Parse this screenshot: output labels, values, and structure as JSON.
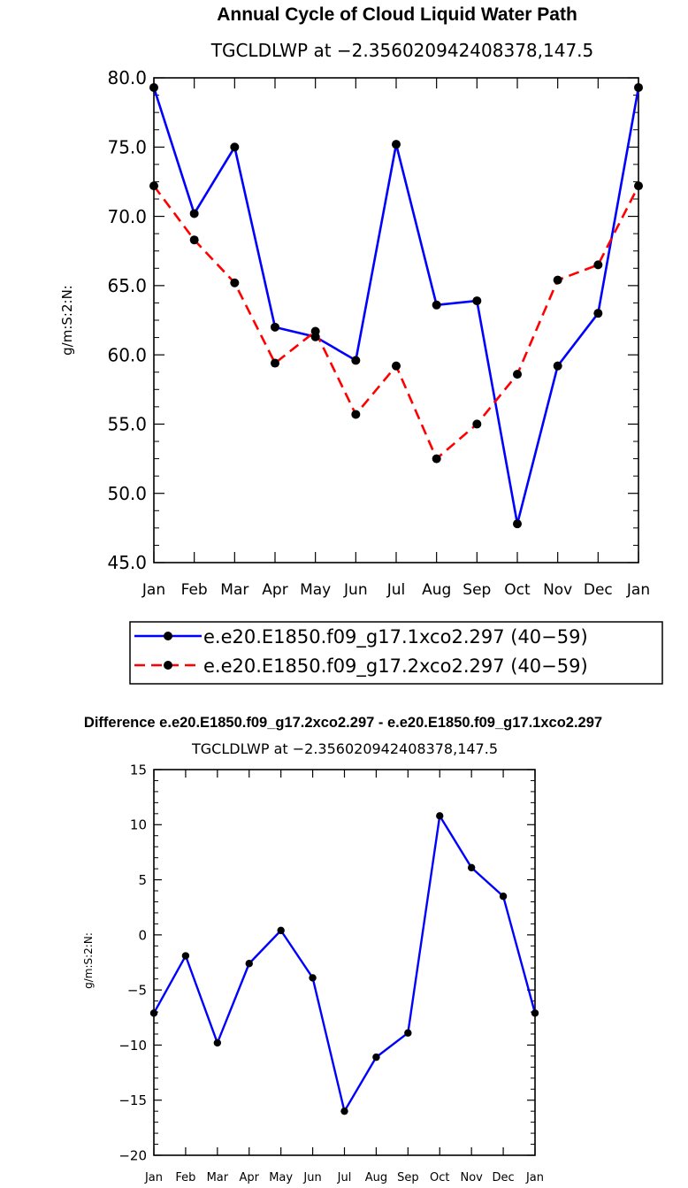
{
  "chart_data": [
    {
      "type": "line",
      "title": "Annual Cycle of Cloud Liquid Water Path",
      "subtitle": "TGCLDLWP at −2.356020942408378,147.5",
      "xlabel": "",
      "ylabel": "g/m:S:2:N:",
      "categories": [
        "Jan",
        "Feb",
        "Mar",
        "Apr",
        "May",
        "Jun",
        "Jul",
        "Aug",
        "Sep",
        "Oct",
        "Nov",
        "Dec",
        "Jan"
      ],
      "ylim": [
        45,
        80
      ],
      "yticks": [
        45,
        50,
        55,
        60,
        65,
        70,
        75,
        80
      ],
      "ytick_labels": [
        "45.0",
        "50.0",
        "55.0",
        "60.0",
        "65.0",
        "70.0",
        "75.0",
        "80.0"
      ],
      "series": [
        {
          "name": "e.e20.E1850.f09_g17.1xco2.297 (40−59)",
          "color": "#0000ff",
          "dash": "solid",
          "values": [
            79.3,
            70.2,
            75.0,
            62.0,
            61.3,
            59.6,
            75.2,
            63.6,
            63.9,
            47.8,
            59.2,
            63.0,
            79.3
          ]
        },
        {
          "name": "e.e20.E1850.f09_g17.2xco2.297 (40−59)",
          "color": "#ff0000",
          "dash": "dashed",
          "values": [
            72.2,
            68.3,
            65.2,
            59.4,
            61.7,
            55.7,
            59.2,
            52.5,
            55.0,
            58.6,
            65.4,
            66.5,
            72.2
          ]
        }
      ]
    },
    {
      "type": "line",
      "title": "Difference e.e20.E1850.f09_g17.2xco2.297 - e.e20.E1850.f09_g17.1xco2.297",
      "subtitle": "TGCLDLWP at −2.356020942408378,147.5",
      "xlabel": "",
      "ylabel": "g/m:S:2:N:",
      "categories": [
        "Jan",
        "Feb",
        "Mar",
        "Apr",
        "May",
        "Jun",
        "Jul",
        "Aug",
        "Sep",
        "Oct",
        "Nov",
        "Dec",
        "Jan"
      ],
      "ylim": [
        -20,
        15
      ],
      "yticks": [
        -20,
        -15,
        -10,
        -5,
        0,
        5,
        10,
        15
      ],
      "ytick_labels": [
        "−20",
        "−15",
        "−10",
        "−5",
        "0",
        "5",
        "10",
        "15"
      ],
      "series": [
        {
          "name": "Difference",
          "color": "#0000ff",
          "dash": "solid",
          "values": [
            -7.1,
            -1.9,
            -9.8,
            -2.6,
            0.4,
            -3.9,
            -16.0,
            -11.1,
            -8.9,
            10.8,
            6.1,
            3.5,
            -7.1
          ]
        }
      ]
    }
  ]
}
